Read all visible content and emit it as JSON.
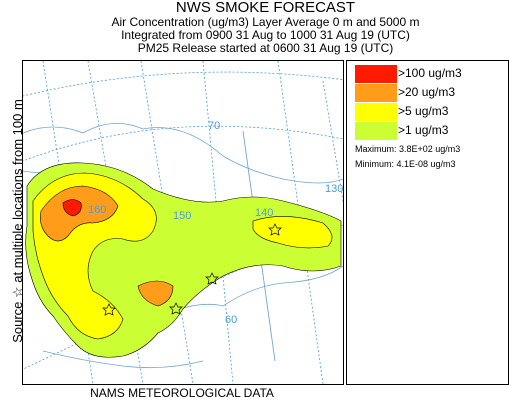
{
  "title": "NWS SMOKE FORECAST",
  "subtitle_lines": [
    "Air Concentration (ug/m3) Layer Average    0 m and  5000 m",
    "Integrated from 0900 31 Aug to 1000 31 Aug 19 (UTC)",
    "PM25 Release started at 0600 31 Aug 19 (UTC)"
  ],
  "side_label": "Source ☆  at multiple locations   from  100 m",
  "footer": "NAMS METEOROLOGICAL DATA",
  "legend": {
    "items": [
      {
        "label": ">100 ug/m3",
        "color": "#ff1a00"
      },
      {
        "label": ">20 ug/m3",
        "color": "#ff9c1a"
      },
      {
        "label": ">5 ug/m3",
        "color": "#ffff00"
      },
      {
        "label": ">1 ug/m3",
        "color": "#ccff33"
      }
    ],
    "max_text": "Maximum: 3.8E+02 ug/m3",
    "min_text": "Minimum: 4.1E-08 ug/m3"
  },
  "grid_labels": {
    "lat_70": "70",
    "lon_160": "160",
    "lon_150": "150",
    "lon_140": "140",
    "lon_130": "130",
    "lat_60": "60"
  },
  "colors": {
    "grid": "#4a9ed6",
    "coast": "#6fa6d0",
    "contour": "#000000"
  }
}
